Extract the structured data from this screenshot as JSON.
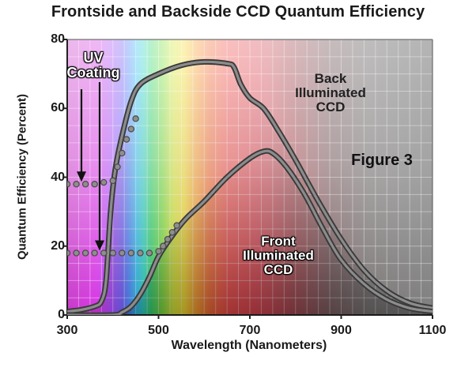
{
  "chart_data": {
    "type": "line",
    "title": "Frontside and Backside CCD Quantum Efficiency",
    "xlabel": "Wavelength (Nanometers)",
    "ylabel": "Quantum Efficiency (Percent)",
    "xlim": [
      300,
      1100
    ],
    "ylim": [
      0,
      80
    ],
    "xticks": [
      300,
      500,
      700,
      900,
      1100
    ],
    "yticks": [
      0,
      20,
      40,
      60,
      80
    ],
    "grid": true,
    "background": "visible-spectrum gradient",
    "series": [
      {
        "name": "Back Illuminated CCD",
        "x": [
          300,
          330,
          360,
          375,
          385,
          395,
          405,
          420,
          440,
          460,
          500,
          550,
          600,
          650,
          665,
          680,
          700,
          730,
          760,
          800,
          850,
          900,
          950,
          1000,
          1050,
          1100
        ],
        "y": [
          1,
          1.5,
          2.5,
          4,
          10,
          30,
          42,
          52,
          62,
          67,
          70,
          72.5,
          73.5,
          73,
          72,
          67,
          63,
          60,
          54,
          45,
          33,
          22,
          13,
          7,
          3.5,
          2
        ]
      },
      {
        "name": "Front Illuminated CCD",
        "x": [
          300,
          400,
          420,
          440,
          460,
          480,
          500,
          530,
          560,
          600,
          650,
          700,
          730,
          750,
          780,
          820,
          860,
          900,
          950,
          1000,
          1050,
          1100
        ],
        "y": [
          0,
          0,
          0.8,
          2.5,
          6,
          11,
          17,
          23,
          28,
          33,
          40,
          45.5,
          47.5,
          47,
          43,
          35,
          25,
          16,
          9,
          4.5,
          2,
          1
        ]
      },
      {
        "name": "UV Coating (Back Illuminated)",
        "x": [
          300,
          320,
          340,
          360,
          380,
          400,
          410,
          420,
          430,
          440,
          450
        ],
        "y": [
          38,
          38,
          38,
          38,
          38.5,
          39,
          43,
          47,
          51,
          54,
          57
        ]
      },
      {
        "name": "UV Coating (Front Illuminated)",
        "x": [
          300,
          320,
          340,
          360,
          380,
          400,
          420,
          440,
          460,
          480,
          500,
          510,
          520,
          530,
          540
        ],
        "y": [
          18,
          18,
          18,
          18,
          18,
          18,
          18,
          18,
          18,
          18,
          18.5,
          20,
          22,
          24,
          26
        ]
      }
    ],
    "annotations": [
      {
        "id": "uv",
        "lines": [
          "UV",
          "Coating"
        ]
      },
      {
        "id": "back",
        "lines": [
          "Back",
          "Illuminated",
          "CCD"
        ]
      },
      {
        "id": "front",
        "lines": [
          "Front",
          "Illuminated",
          "CCD"
        ]
      },
      {
        "id": "figure",
        "lines": [
          "Figure 3"
        ]
      }
    ]
  }
}
